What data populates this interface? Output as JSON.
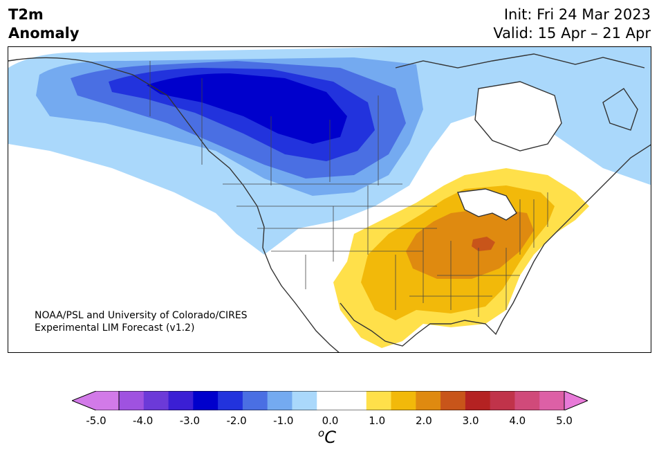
{
  "title": {
    "line1": "T2m",
    "line2": "Anomaly"
  },
  "header": {
    "init": "Init: Fri 24 Mar 2023",
    "valid": "Valid: 15 Apr – 21 Apr"
  },
  "credit": {
    "line1": "NOAA/PSL and University of Colorado/CIRES",
    "line2": "Experimental LIM Forecast (v1.2)"
  },
  "colorbar": {
    "tick_labels": [
      "-5.0",
      "-4.0",
      "-3.0",
      "-2.0",
      "-1.0",
      "0.0",
      "1.0",
      "2.0",
      "3.0",
      "4.0",
      "5.0"
    ],
    "colors": [
      "#9f52e0",
      "#6c3ad8",
      "#3b1fd4",
      "#0000cc",
      "#2233dd",
      "#4a6fe3",
      "#74aaf0",
      "#aad8fb",
      "#ffffff",
      "#ffffff",
      "#ffe04a",
      "#f2b90a",
      "#df8a10",
      "#c8551a",
      "#b42222",
      "#c0334a",
      "#d04a7a",
      "#dd60a6"
    ],
    "low_extend_color": "#d27ae8",
    "high_extend_color": "#e87ad8",
    "unit_base": "C",
    "unit_sup": "o"
  },
  "colors": {
    "cold_light": "#aad8fb",
    "cold_mid": "#74aaf0",
    "cold_med": "#4a6fe3",
    "cold_deep": "#2233dd",
    "cold_core": "#0000cc",
    "warm_light": "#ffe04a",
    "warm_mid": "#f2b90a",
    "warm_med": "#df8a10",
    "warm_deep": "#c8551a"
  }
}
